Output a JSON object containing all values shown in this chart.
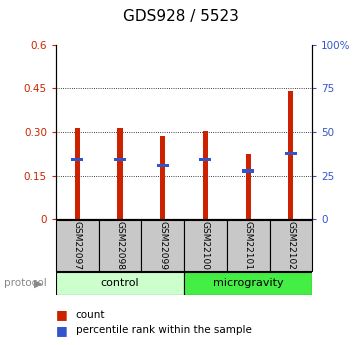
{
  "title": "GDS928 / 5523",
  "samples": [
    "GSM22097",
    "GSM22098",
    "GSM22099",
    "GSM22100",
    "GSM22101",
    "GSM22102"
  ],
  "red_values": [
    0.315,
    0.315,
    0.285,
    0.305,
    0.225,
    0.44
  ],
  "blue_values": [
    0.205,
    0.205,
    0.185,
    0.205,
    0.165,
    0.225
  ],
  "ylim_left": [
    0,
    0.6
  ],
  "ylim_right": [
    0,
    100
  ],
  "yticks_left": [
    0,
    0.15,
    0.3,
    0.45,
    0.6
  ],
  "yticks_right": [
    0,
    25,
    50,
    75,
    100
  ],
  "ytick_labels_left": [
    "0",
    "0.15",
    "0.30",
    "0.45",
    "0.6"
  ],
  "ytick_labels_right": [
    "0",
    "25",
    "50",
    "75",
    "100%"
  ],
  "control_label": "control",
  "microgravity_label": "microgravity",
  "protocol_label": "protocol",
  "legend_count": "count",
  "legend_pct": "percentile rank within the sample",
  "bar_color": "#cc2200",
  "blue_color": "#3355cc",
  "control_bg": "#ccffcc",
  "microgravity_bg": "#44ee44",
  "sample_bg": "#c8c8c8",
  "title_fontsize": 11,
  "tick_fontsize": 7.5,
  "sample_fontsize": 6.5,
  "proto_fontsize": 8,
  "legend_fontsize": 7.5
}
